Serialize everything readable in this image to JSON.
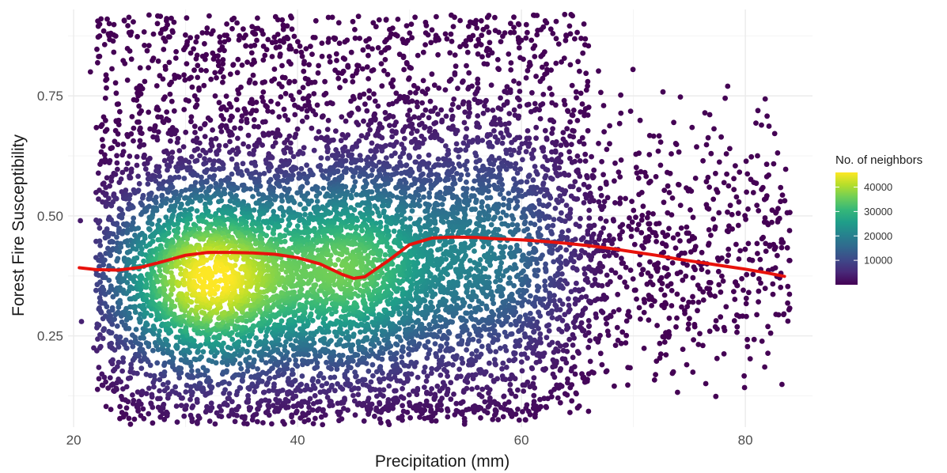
{
  "chart_data": {
    "type": "scatter",
    "title": "",
    "xlabel": "Precipitation (mm)",
    "ylabel": "Forest Fire Susceptibility",
    "xlim": [
      19.5,
      86
    ],
    "ylim": [
      0.06,
      0.93
    ],
    "x_ticks": [
      20,
      40,
      60,
      80
    ],
    "y_ticks": [
      0.25,
      0.5,
      0.75
    ],
    "grid": true,
    "density_clusters": [
      {
        "x_center": 32,
        "y_center": 0.37,
        "x_spread": 5.5,
        "y_spread": 0.12,
        "peak_neighbors": 46000
      },
      {
        "x_center": 45,
        "y_center": 0.39,
        "x_spread": 5,
        "y_spread": 0.13,
        "peak_neighbors": 32000
      },
      {
        "x_center": 57,
        "y_center": 0.42,
        "x_spread": 5,
        "y_spread": 0.15,
        "peak_neighbors": 18000
      }
    ],
    "dense_region": {
      "x_range": [
        22,
        66
      ],
      "y_range": [
        0.07,
        0.9
      ]
    },
    "sparse_region": {
      "x_range": [
        66,
        84
      ],
      "y_range": [
        0.12,
        0.83
      ]
    },
    "trend_line": {
      "name": "smooth",
      "color": "#e8120c",
      "x": [
        20.5,
        22,
        24,
        26,
        28,
        30,
        32,
        34,
        36,
        38,
        40,
        42,
        44,
        45,
        46,
        48,
        50,
        52,
        54,
        56,
        58,
        60,
        62,
        64,
        66,
        68,
        70,
        72,
        74,
        76,
        78,
        80,
        82,
        83.5
      ],
      "y": [
        0.392,
        0.388,
        0.387,
        0.393,
        0.405,
        0.418,
        0.424,
        0.424,
        0.423,
        0.42,
        0.413,
        0.4,
        0.378,
        0.37,
        0.373,
        0.405,
        0.44,
        0.454,
        0.456,
        0.455,
        0.452,
        0.45,
        0.447,
        0.443,
        0.438,
        0.432,
        0.425,
        0.418,
        0.41,
        0.403,
        0.396,
        0.389,
        0.381,
        0.374
      ]
    }
  },
  "legend": {
    "title": "No. of neighbors",
    "labels": [
      "40000",
      "30000",
      "20000",
      "10000"
    ],
    "values": [
      40000,
      30000,
      20000,
      10000
    ],
    "range": [
      0,
      46000
    ],
    "colors": [
      "#440154",
      "#482878",
      "#3e4989",
      "#31688e",
      "#26828e",
      "#1f9e89",
      "#35b779",
      "#6ece58",
      "#b5de2b",
      "#fde725"
    ]
  },
  "colors": {
    "background": "#ffffff",
    "grid_major": "#ebebeb",
    "grid_minor": "#f4f4f4",
    "point_low": "#440154",
    "point_high": "#fde725",
    "trend": "#e8120c"
  }
}
